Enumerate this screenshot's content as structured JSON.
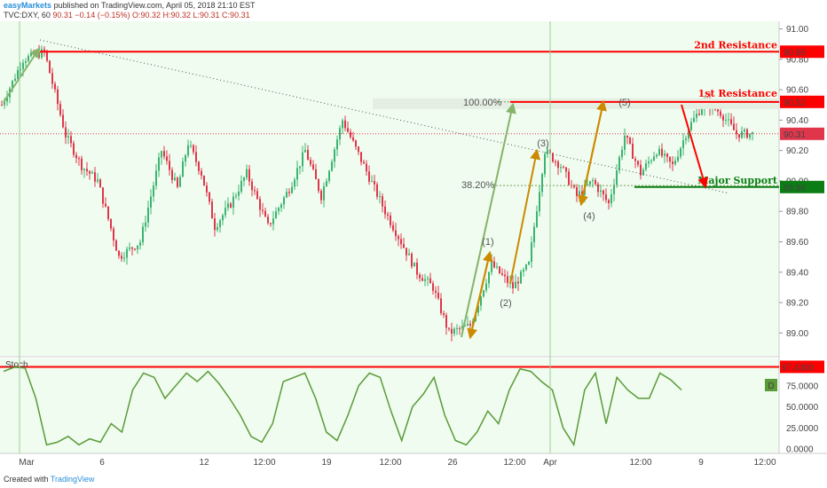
{
  "header": {
    "brand": "easyMarkets",
    "published": "published on TradingView.com, April 05, 2018 21:10 EST",
    "symbol": "TVC:DXY, 60",
    "last": "90.31",
    "change": "−0.14 (−0.15%)",
    "ohlc": "O:90.32 H:90.32 L:90.31 C:90.31"
  },
  "footer": {
    "created_with": "Created with",
    "tradingview": "TradingView"
  },
  "colors": {
    "background": "#effcef",
    "up_candle": "#3cb371",
    "down_candle": "#e0364b",
    "resistance": "#ff0000",
    "support": "#0b7d14",
    "stoch": "#5a9a38",
    "elliott_arrow": "#cc8a00"
  },
  "chart_data": [
    {
      "type": "line",
      "title": "",
      "series_style": "candlestick",
      "ylim": [
        88.85,
        91.05
      ],
      "y_ticks": [
        "91.00",
        "90.80",
        "90.60",
        "90.40",
        "90.20",
        "90.00",
        "89.80",
        "89.60",
        "89.40",
        "89.20",
        "89.00"
      ],
      "x_ticks": [
        "Mar",
        "6",
        "12",
        "12:00",
        "19",
        "12:00",
        "26",
        "12:00",
        "Apr",
        "12:00",
        "9",
        "12:00"
      ],
      "series": [
        {
          "x_index": [
            0,
            8,
            16,
            24,
            30,
            36,
            44,
            52,
            60,
            66,
            70,
            75,
            80,
            86,
            92,
            100,
            108,
            114,
            120,
            128,
            136,
            144,
            150,
            156,
            162,
            168,
            176,
            184,
            192,
            198,
            204,
            210,
            216,
            222,
            228,
            234,
            240,
            246,
            252,
            258,
            264,
            270,
            276,
            282
          ],
          "values": [
            90.5,
            90.8,
            90.85,
            90.3,
            90.1,
            90.0,
            89.5,
            89.6,
            90.2,
            89.95,
            90.25,
            90.05,
            89.7,
            89.85,
            90.05,
            89.7,
            89.95,
            90.2,
            89.9,
            90.4,
            90.1,
            89.8,
            89.6,
            89.4,
            89.3,
            89.0,
            89.05,
            89.45,
            89.3,
            89.45,
            90.2,
            90.1,
            89.9,
            90.0,
            89.85,
            90.3,
            90.05,
            90.2,
            90.1,
            90.35,
            90.52,
            90.45,
            90.31,
            90.31
          ]
        }
      ],
      "annotations": {
        "second_resistance": {
          "label": "2nd Resistance",
          "value": 90.85,
          "value_label": "90.85"
        },
        "first_resistance": {
          "label": "1st Resistance",
          "value": 90.52,
          "value_label": "90.52"
        },
        "major_support": {
          "label": "Major Support",
          "value": 89.96,
          "value_label": "89.96"
        },
        "last_price": {
          "value": 90.31,
          "value_label": "90.31"
        },
        "fib_100": {
          "label": "100.00%",
          "value": 90.52
        },
        "fib_38": {
          "label": "38.20%",
          "value": 89.97
        },
        "waves": [
          "(1)",
          "(2)",
          "(3)",
          "(4)",
          "(5)"
        ]
      }
    },
    {
      "type": "line",
      "title": "",
      "indicator": "Stoch",
      "ylim": [
        0,
        100
      ],
      "y_ticks": [
        "75.0000",
        "50.0000",
        "25.0000",
        "0.0000"
      ],
      "overbought_label": "97.4300",
      "overbought_value": 97.43,
      "badge": "D",
      "series": [
        {
          "values": [
            92,
            97,
            96,
            60,
            5,
            8,
            15,
            5,
            12,
            8,
            30,
            20,
            70,
            90,
            85,
            60,
            75,
            90,
            80,
            92,
            78,
            60,
            40,
            15,
            8,
            30,
            80,
            85,
            90,
            60,
            20,
            10,
            40,
            75,
            90,
            85,
            45,
            10,
            50,
            65,
            85,
            40,
            10,
            5,
            20,
            45,
            30,
            70,
            95,
            92,
            80,
            70,
            25,
            5,
            70,
            90,
            30,
            85,
            70,
            60,
            60,
            90,
            82,
            70
          ]
        }
      ]
    }
  ]
}
